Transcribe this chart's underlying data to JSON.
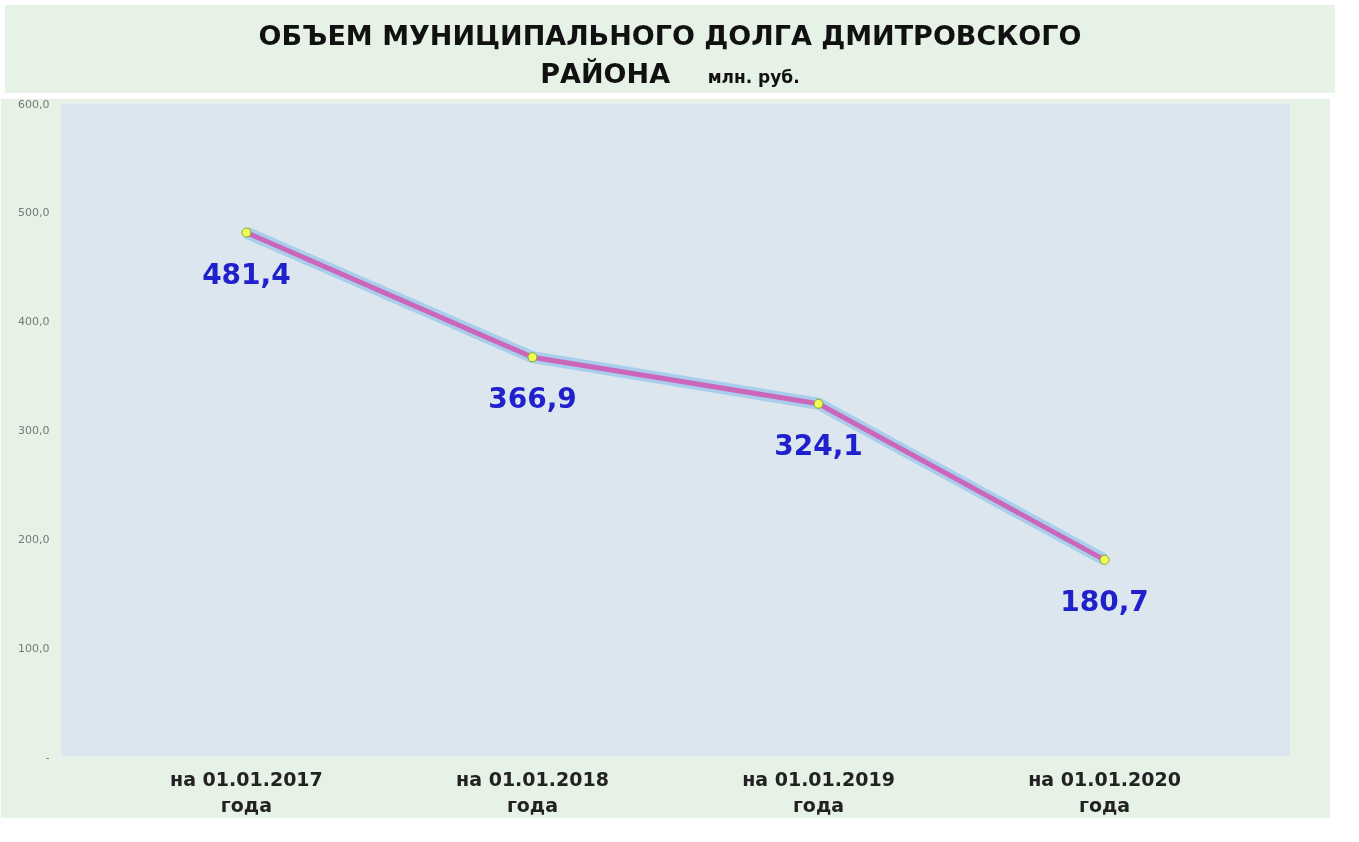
{
  "chart_data": {
    "type": "line",
    "title": "ОБЪЕМ МУНИЦИПАЛЬНОГО ДОЛГА ДМИТРОВСКОГО\nРАЙОНА",
    "subtitle": "млн. руб.",
    "categories": [
      "на 01.01.2017\nгода",
      "на 01.01.2018\nгода",
      "на 01.01.2019\nгода",
      "на 01.01.2020\nгода"
    ],
    "series": [
      {
        "color": "#cc66bb",
        "values": [
          481.4,
          366.9,
          324.1,
          180.7
        ],
        "value_labels": [
          "481,4",
          "366,9",
          "324,1",
          "180,7"
        ]
      }
    ],
    "ylim": [
      0,
      600
    ],
    "yticks": [
      {
        "value": 0,
        "label": "-"
      },
      {
        "value": 100,
        "label": "100,0"
      },
      {
        "value": 200,
        "label": "200,0"
      },
      {
        "value": 300,
        "label": "300,0"
      },
      {
        "value": 400,
        "label": "400,0"
      },
      {
        "value": 500,
        "label": "500,0"
      },
      {
        "value": 600,
        "label": "600,0"
      }
    ],
    "marker": "circle",
    "grid": false
  }
}
